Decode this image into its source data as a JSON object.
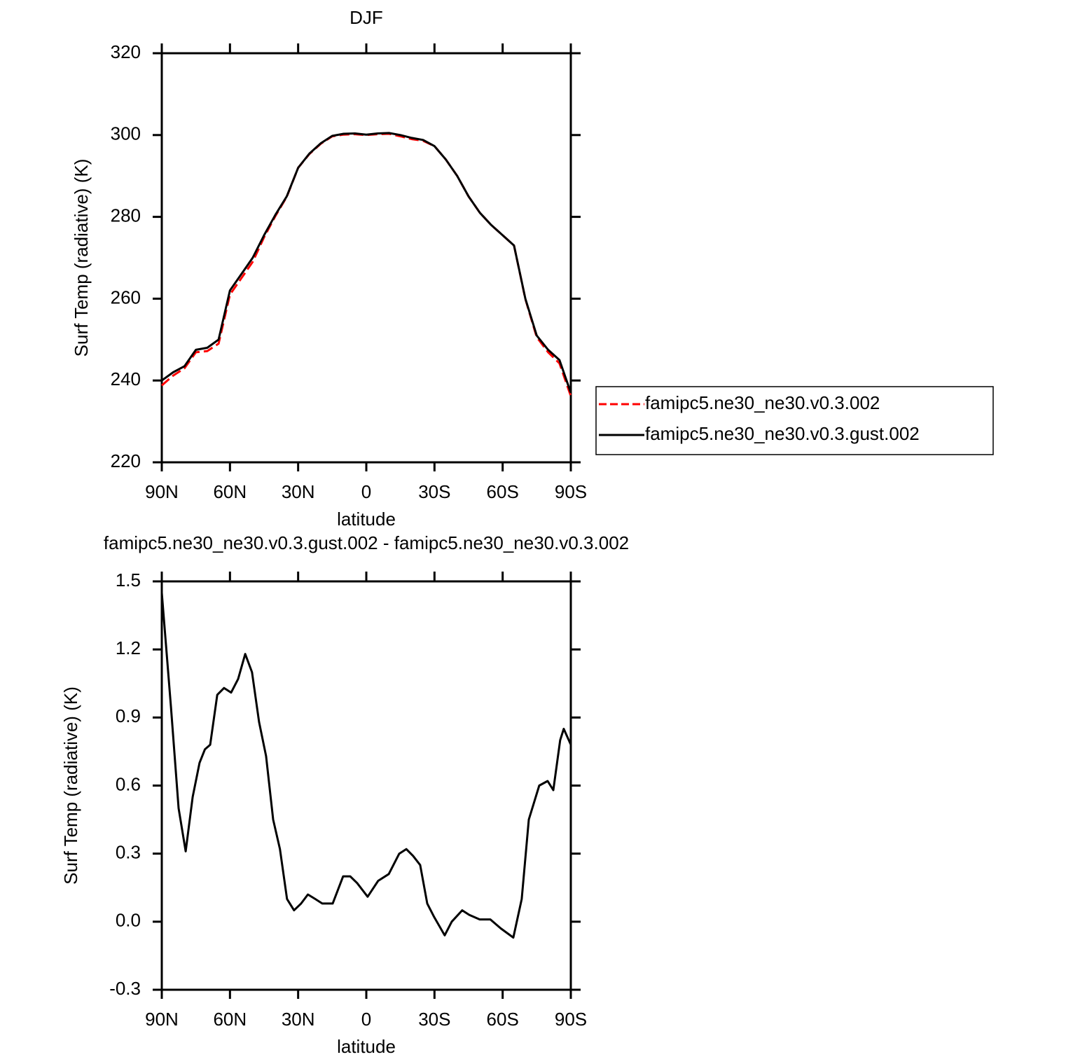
{
  "chart_data": [
    {
      "type": "line",
      "title": "DJF",
      "x_label": "latitude",
      "y_label": "Surf Temp (radiative) (K)",
      "x": [
        90,
        85,
        80,
        75,
        70,
        65,
        60,
        55,
        50,
        45,
        40,
        35,
        30,
        25,
        20,
        15,
        10,
        5,
        0,
        -5,
        -10,
        -15,
        -20,
        -25,
        -30,
        -35,
        -40,
        -45,
        -50,
        -55,
        -60,
        -65,
        -70,
        -75,
        -80,
        -85,
        -90
      ],
      "series": [
        {
          "name": "famipc5.ne30_ne30.v0.3.002",
          "color": "#ff0000",
          "dash": true,
          "values": [
            238.8,
            241.2,
            243,
            246.9,
            247.2,
            249,
            261,
            265,
            269,
            275,
            280.2,
            284.9,
            292,
            295.4,
            297.9,
            299.7,
            300.1,
            300.2,
            300,
            300.2,
            300.3,
            299.7,
            299,
            298.6,
            297.3,
            294,
            290,
            285,
            281,
            278,
            275.5,
            273,
            259.9,
            250.6,
            246.9,
            244.2,
            236.2
          ]
        },
        {
          "name": "famipc5.ne30_ne30.v0.3.gust.002",
          "color": "#000000",
          "dash": false,
          "values": [
            240,
            242,
            243.5,
            247.5,
            248,
            250,
            262,
            266,
            270,
            275.5,
            280.5,
            285,
            292,
            295.5,
            298,
            299.8,
            300.3,
            300.4,
            300.1,
            300.4,
            300.5,
            300,
            299.3,
            298.8,
            297.3,
            294,
            290,
            285,
            281,
            278,
            275.5,
            273,
            260,
            251,
            247.5,
            245,
            237
          ]
        }
      ],
      "xlim": [
        90,
        -90
      ],
      "xticks": [
        {
          "value": 90,
          "label": "90N"
        },
        {
          "value": 60,
          "label": "60N"
        },
        {
          "value": 30,
          "label": "30N"
        },
        0,
        {
          "value": -30,
          "label": "30S"
        },
        {
          "value": -60,
          "label": "60S"
        },
        {
          "value": -90,
          "label": "90S"
        }
      ],
      "ylim": [
        220,
        320
      ],
      "yticks": [
        220,
        240,
        260,
        280,
        300,
        320
      ]
    },
    {
      "type": "line",
      "title": "famipc5.ne30_ne30.v0.3.gust.002 - famipc5.ne30_ne30.v0.3.002",
      "x_label": "latitude",
      "y_label": "Surf Temp (radiative) (K)",
      "x": [
        90,
        86,
        82.6,
        79.5,
        76.4,
        73.4,
        71,
        68.7,
        65.6,
        62.6,
        59.5,
        56.4,
        53.3,
        50.3,
        47.2,
        44.1,
        41,
        38,
        34.9,
        31.8,
        28.7,
        25.7,
        22.5,
        19.4,
        14.8,
        10.2,
        7.1,
        4,
        -0.6,
        -5.2,
        -9.9,
        -14.5,
        -17.6,
        -20.6,
        -23.7,
        -26.8,
        -29.9,
        -34.5,
        -37.6,
        -42.2,
        -45.3,
        -49.9,
        -54.6,
        -59.2,
        -64.7,
        -68.4,
        -71.5,
        -76.1,
        -79.8,
        -82.3,
        -85.3,
        -86.9,
        -90
      ],
      "series": [
        {
          "name": "famipc5.ne30_ne30.v0.3.gust.002 - famipc5.ne30_ne30.v0.3.002",
          "color": "#000000",
          "dash": false,
          "values": [
            1.45,
            0.95,
            0.5,
            0.31,
            0.55,
            0.7,
            0.76,
            0.78,
            1.0,
            1.03,
            1.01,
            1.07,
            1.18,
            1.1,
            0.88,
            0.73,
            0.45,
            0.32,
            0.1,
            0.05,
            0.08,
            0.12,
            0.1,
            0.08,
            0.08,
            0.2,
            0.2,
            0.17,
            0.11,
            0.18,
            0.21,
            0.3,
            0.32,
            0.29,
            0.25,
            0.08,
            0.02,
            -0.06,
            0,
            0.05,
            0.03,
            0.01,
            0.01,
            -0.03,
            -0.07,
            0.1,
            0.45,
            0.6,
            0.62,
            0.58,
            0.8,
            0.85,
            0.78
          ]
        }
      ],
      "xlim": [
        90,
        -90
      ],
      "xticks": [
        {
          "value": 90,
          "label": "90N"
        },
        {
          "value": 60,
          "label": "60N"
        },
        {
          "value": 30,
          "label": "30N"
        },
        0,
        {
          "value": -30,
          "label": "30S"
        },
        {
          "value": -60,
          "label": "60S"
        },
        {
          "value": -90,
          "label": "90S"
        }
      ],
      "ylim": [
        -0.3,
        1.5
      ],
      "yticks": [
        -0.3,
        {
          "value": 0,
          "label": "0.0"
        },
        0.3,
        0.6,
        0.9,
        1.2,
        1.5
      ]
    }
  ]
}
